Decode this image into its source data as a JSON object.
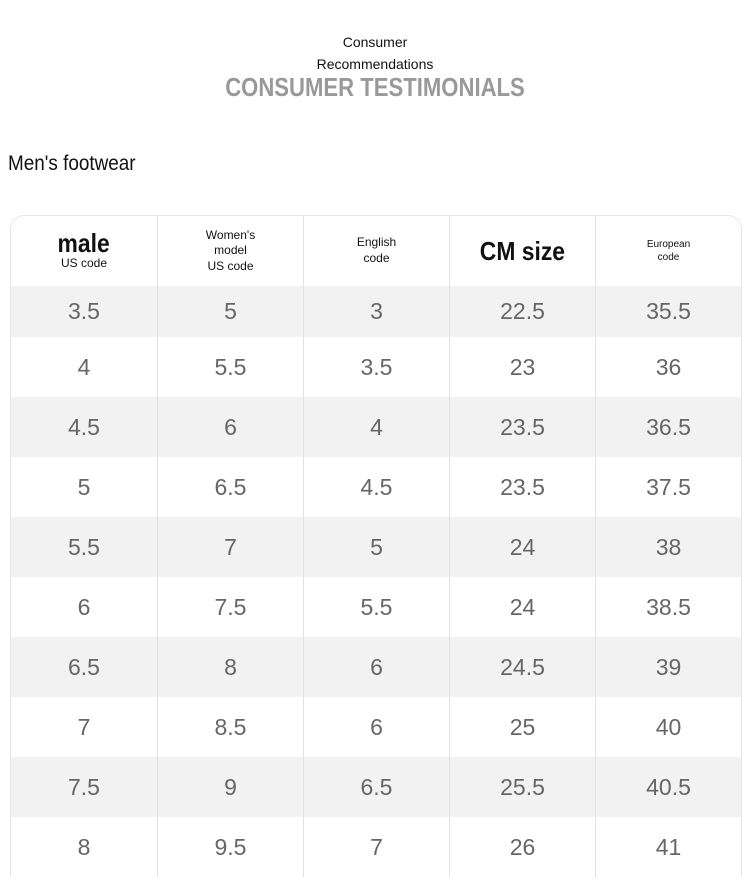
{
  "header": {
    "line1": "Consumer",
    "line2": "Recommendations",
    "title": "CONSUMER TESTIMONIALS"
  },
  "section_title": "Men's footwear",
  "table": {
    "columns": [
      [
        "male",
        "US code"
      ],
      [
        "Women's",
        "model",
        "US code"
      ],
      [
        "English",
        "code"
      ],
      [
        "CM size"
      ],
      [
        "European",
        "code"
      ]
    ],
    "rows": [
      [
        3.5,
        5,
        3,
        22.5,
        35.5
      ],
      [
        4,
        5.5,
        3.5,
        23,
        36
      ],
      [
        4.5,
        6,
        4,
        23.5,
        36.5
      ],
      [
        5,
        6.5,
        4.5,
        23.5,
        37.5
      ],
      [
        5.5,
        7,
        5,
        24,
        38
      ],
      [
        6,
        7.5,
        5.5,
        24,
        38.5
      ],
      [
        6.5,
        8,
        6,
        24.5,
        39
      ],
      [
        7,
        8.5,
        6,
        25,
        40
      ],
      [
        7.5,
        9,
        6.5,
        25.5,
        40.5
      ],
      [
        8,
        9.5,
        7,
        26,
        41
      ]
    ]
  }
}
